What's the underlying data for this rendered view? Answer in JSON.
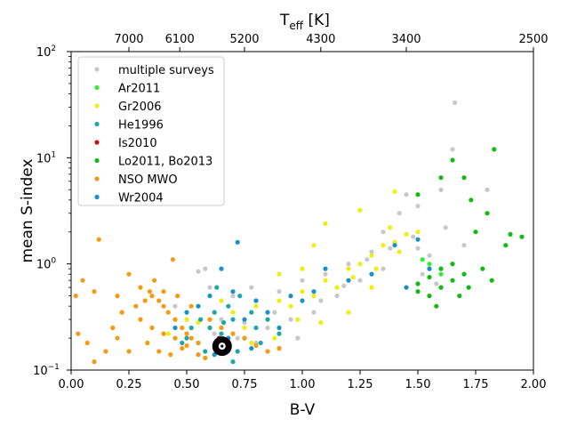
{
  "chart_data": {
    "type": "scatter",
    "xlabel": "B-V",
    "ylabel": "mean S-index",
    "top_axis": {
      "label_main": "T",
      "label_sub": "eff",
      "label_unit": " [K]",
      "ticks": [
        {
          "bv": 0.25,
          "label": "7000"
        },
        {
          "bv": 0.47,
          "label": "6100"
        },
        {
          "bv": 0.75,
          "label": "5200"
        },
        {
          "bv": 1.08,
          "label": "4300"
        },
        {
          "bv": 1.45,
          "label": "3400"
        },
        {
          "bv": 2.0,
          "label": "2500"
        }
      ]
    },
    "xlim": [
      0.0,
      2.0
    ],
    "ylim": [
      0.1,
      100
    ],
    "yscale": "log",
    "xticks": [
      "0.00",
      "0.25",
      "0.50",
      "0.75",
      "1.00",
      "1.25",
      "1.50",
      "1.75",
      "2.00"
    ],
    "xtick_values": [
      0,
      0.25,
      0.5,
      0.75,
      1.0,
      1.25,
      1.5,
      1.75,
      2.0
    ],
    "yticks": [
      {
        "value": 0.1,
        "base": "10",
        "exp": "−1"
      },
      {
        "value": 1,
        "base": "10",
        "exp": "0"
      },
      {
        "value": 10,
        "base": "10",
        "exp": "1"
      },
      {
        "value": 100,
        "base": "10",
        "exp": "2"
      }
    ],
    "legend_position": "upper-left",
    "series": [
      {
        "name": "multiple surveys",
        "color": "#c8c8c8",
        "points": [
          [
            0.55,
            0.85
          ],
          [
            0.6,
            0.6
          ],
          [
            0.7,
            0.5
          ],
          [
            0.8,
            0.45
          ],
          [
            0.9,
            0.55
          ],
          [
            1.0,
            0.7
          ],
          [
            1.1,
            0.8
          ],
          [
            1.2,
            1.0
          ],
          [
            1.3,
            1.3
          ],
          [
            1.4,
            1.6
          ],
          [
            1.5,
            1.4
          ],
          [
            1.55,
            1.2
          ],
          [
            1.6,
            0.9
          ],
          [
            1.65,
            1.0
          ],
          [
            1.66,
            33
          ],
          [
            1.65,
            12
          ],
          [
            1.8,
            5
          ],
          [
            1.6,
            5
          ],
          [
            1.5,
            3.5
          ],
          [
            1.45,
            4.5
          ],
          [
            1.62,
            2.2
          ],
          [
            1.7,
            1.5
          ],
          [
            0.65,
            0.3
          ],
          [
            0.75,
            0.28
          ],
          [
            0.85,
            0.25
          ],
          [
            0.95,
            0.3
          ],
          [
            1.05,
            0.35
          ],
          [
            0.72,
            0.2
          ],
          [
            0.8,
            0.18
          ],
          [
            0.9,
            0.16
          ],
          [
            0.62,
            0.22
          ],
          [
            0.68,
            0.16
          ],
          [
            1.15,
            0.5
          ],
          [
            1.25,
            0.7
          ],
          [
            1.35,
            0.9
          ],
          [
            0.5,
            0.3
          ],
          [
            0.45,
            0.4
          ],
          [
            0.58,
            0.9
          ],
          [
            0.78,
            0.6
          ],
          [
            0.88,
            0.35
          ],
          [
            0.98,
            0.2
          ],
          [
            1.08,
            0.45
          ],
          [
            1.18,
            0.62
          ],
          [
            1.28,
            1.1
          ],
          [
            1.38,
            1.4
          ],
          [
            1.48,
            1.8
          ],
          [
            1.52,
            0.8
          ],
          [
            1.58,
            0.65
          ],
          [
            1.42,
            3.0
          ],
          [
            1.35,
            2.0
          ]
        ]
      },
      {
        "name": "Ar2011",
        "color": "#33ee33",
        "points": [
          [
            1.52,
            1.1
          ],
          [
            1.55,
            1.0
          ],
          [
            1.6,
            0.8
          ]
        ]
      },
      {
        "name": "Gr2006",
        "color": "#eeee11",
        "points": [
          [
            0.42,
            0.22
          ],
          [
            0.5,
            0.3
          ],
          [
            0.55,
            0.28
          ],
          [
            0.6,
            0.25
          ],
          [
            0.7,
            0.35
          ],
          [
            0.8,
            0.4
          ],
          [
            0.9,
            0.45
          ],
          [
            1.0,
            0.55
          ],
          [
            1.1,
            0.7
          ],
          [
            1.2,
            0.9
          ],
          [
            1.3,
            1.2
          ],
          [
            1.4,
            1.6
          ],
          [
            1.45,
            1.9
          ],
          [
            1.35,
            1.5
          ],
          [
            1.25,
            1.0
          ],
          [
            1.15,
            0.6
          ],
          [
            1.05,
            0.5
          ],
          [
            0.95,
            0.4
          ],
          [
            0.85,
            0.3
          ],
          [
            0.75,
            0.25
          ],
          [
            1.4,
            4.8
          ],
          [
            1.25,
            3.2
          ],
          [
            1.1,
            2.4
          ],
          [
            1.05,
            1.5
          ],
          [
            1.2,
            0.35
          ],
          [
            1.3,
            0.6
          ],
          [
            0.65,
            0.45
          ],
          [
            0.9,
            0.8
          ],
          [
            1.0,
            0.9
          ],
          [
            1.38,
            2.2
          ],
          [
            1.5,
            2.0
          ],
          [
            1.42,
            1.3
          ],
          [
            1.32,
            0.9
          ],
          [
            1.22,
            0.75
          ],
          [
            0.98,
            0.3
          ],
          [
            1.08,
            0.28
          ],
          [
            0.88,
            0.2
          ],
          [
            0.78,
            0.18
          ]
        ]
      },
      {
        "name": "He1996",
        "color": "#1aa8a8",
        "points": [
          [
            0.5,
            0.2
          ],
          [
            0.55,
            0.18
          ],
          [
            0.6,
            0.25
          ],
          [
            0.65,
            0.22
          ],
          [
            0.7,
            0.3
          ],
          [
            0.75,
            0.2
          ],
          [
            0.8,
            0.25
          ],
          [
            0.62,
            0.35
          ],
          [
            0.68,
            0.4
          ],
          [
            0.72,
            0.15
          ],
          [
            0.58,
            0.15
          ],
          [
            0.85,
            0.3
          ],
          [
            0.9,
            0.22
          ],
          [
            0.66,
            0.28
          ],
          [
            0.56,
            0.3
          ],
          [
            0.63,
            0.6
          ],
          [
            0.73,
            0.5
          ],
          [
            0.78,
            0.35
          ],
          [
            0.52,
            0.25
          ],
          [
            0.48,
            0.18
          ],
          [
            0.82,
            0.18
          ],
          [
            0.7,
            0.12
          ]
        ]
      },
      {
        "name": "Is2010",
        "color": "#cc1111",
        "points": [
          [
            0.64,
            0.2
          ]
        ]
      },
      {
        "name": "Lo2011, Bo2013",
        "color": "#11bb11",
        "points": [
          [
            1.5,
            4.5
          ],
          [
            1.6,
            6.5
          ],
          [
            1.65,
            9.5
          ],
          [
            1.83,
            12
          ],
          [
            1.7,
            6.5
          ],
          [
            1.73,
            4
          ],
          [
            1.8,
            3
          ],
          [
            1.75,
            2.0
          ],
          [
            1.9,
            1.9
          ],
          [
            1.95,
            1.8
          ],
          [
            1.88,
            1.5
          ],
          [
            1.65,
            1.0
          ],
          [
            1.7,
            0.8
          ],
          [
            1.6,
            0.6
          ],
          [
            1.55,
            0.5
          ],
          [
            1.5,
            0.55
          ],
          [
            1.58,
            0.4
          ],
          [
            1.68,
            0.5
          ],
          [
            1.72,
            0.6
          ],
          [
            1.78,
            0.9
          ],
          [
            1.82,
            0.7
          ],
          [
            1.6,
            0.9
          ],
          [
            1.65,
            0.7
          ],
          [
            1.55,
            0.75
          ],
          [
            1.5,
            0.65
          ]
        ]
      },
      {
        "name": "NSO MWO",
        "color": "#f59a11",
        "points": [
          [
            0.02,
            0.5
          ],
          [
            0.05,
            0.7
          ],
          [
            0.1,
            0.55
          ],
          [
            0.12,
            1.7
          ],
          [
            0.2,
            0.5
          ],
          [
            0.25,
            0.8
          ],
          [
            0.3,
            0.6
          ],
          [
            0.35,
            0.5
          ],
          [
            0.38,
            0.45
          ],
          [
            0.4,
            0.55
          ],
          [
            0.42,
            0.35
          ],
          [
            0.45,
            0.3
          ],
          [
            0.48,
            0.25
          ],
          [
            0.5,
            0.22
          ],
          [
            0.52,
            0.2
          ],
          [
            0.55,
            0.18
          ],
          [
            0.3,
            0.3
          ],
          [
            0.35,
            0.25
          ],
          [
            0.4,
            0.22
          ],
          [
            0.45,
            0.2
          ],
          [
            0.5,
            0.17
          ],
          [
            0.2,
            0.2
          ],
          [
            0.15,
            0.15
          ],
          [
            0.1,
            0.12
          ],
          [
            0.07,
            0.18
          ],
          [
            0.03,
            0.22
          ],
          [
            0.25,
            0.15
          ],
          [
            0.33,
            0.18
          ],
          [
            0.38,
            0.15
          ],
          [
            0.43,
            0.14
          ],
          [
            0.48,
            0.16
          ],
          [
            0.28,
            0.4
          ],
          [
            0.32,
            0.45
          ],
          [
            0.36,
            0.7
          ],
          [
            0.44,
            1.1
          ],
          [
            0.52,
            0.4
          ],
          [
            0.6,
            0.3
          ],
          [
            0.65,
            0.25
          ],
          [
            0.7,
            0.22
          ],
          [
            0.75,
            0.2
          ],
          [
            0.8,
            0.17
          ],
          [
            0.85,
            0.15
          ],
          [
            0.9,
            0.16
          ],
          [
            0.55,
            0.14
          ],
          [
            0.58,
            0.13
          ],
          [
            0.22,
            0.35
          ],
          [
            0.18,
            0.25
          ],
          [
            0.4,
            0.4
          ],
          [
            0.46,
            0.5
          ],
          [
            0.34,
            0.55
          ]
        ]
      },
      {
        "name": "Wr2004",
        "color": "#1a8fc8",
        "points": [
          [
            0.6,
            0.5
          ],
          [
            0.7,
            0.55
          ],
          [
            0.65,
            0.9
          ],
          [
            0.8,
            0.45
          ],
          [
            0.75,
            0.3
          ],
          [
            0.85,
            0.35
          ],
          [
            0.9,
            0.25
          ],
          [
            0.55,
            0.4
          ],
          [
            0.5,
            0.35
          ],
          [
            0.95,
            0.5
          ],
          [
            1.0,
            0.45
          ],
          [
            1.05,
            0.55
          ],
          [
            1.1,
            0.9
          ],
          [
            1.2,
            0.7
          ],
          [
            1.3,
            0.8
          ],
          [
            0.72,
            1.6
          ],
          [
            0.68,
            0.2
          ],
          [
            0.78,
            0.16
          ],
          [
            0.62,
            0.14
          ],
          [
            1.4,
            1.5
          ],
          [
            1.5,
            1.7
          ],
          [
            1.55,
            0.9
          ],
          [
            1.45,
            0.6
          ],
          [
            0.45,
            0.25
          ]
        ]
      }
    ],
    "highlight": {
      "name": "sun-marker",
      "bv": 0.653,
      "s": 0.168
    }
  }
}
